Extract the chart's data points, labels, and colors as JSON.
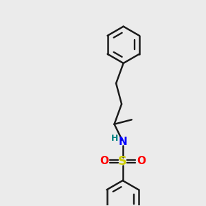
{
  "bg_color": "#ebebeb",
  "bond_color": "#1a1a1a",
  "N_color": "#0000ff",
  "O_color": "#ff0000",
  "S_color": "#cccc00",
  "H_color": "#008080",
  "lw": 1.8,
  "figsize": [
    3.0,
    3.0
  ],
  "dpi": 100,
  "xlim": [
    0,
    10
  ],
  "ylim": [
    0,
    10
  ]
}
